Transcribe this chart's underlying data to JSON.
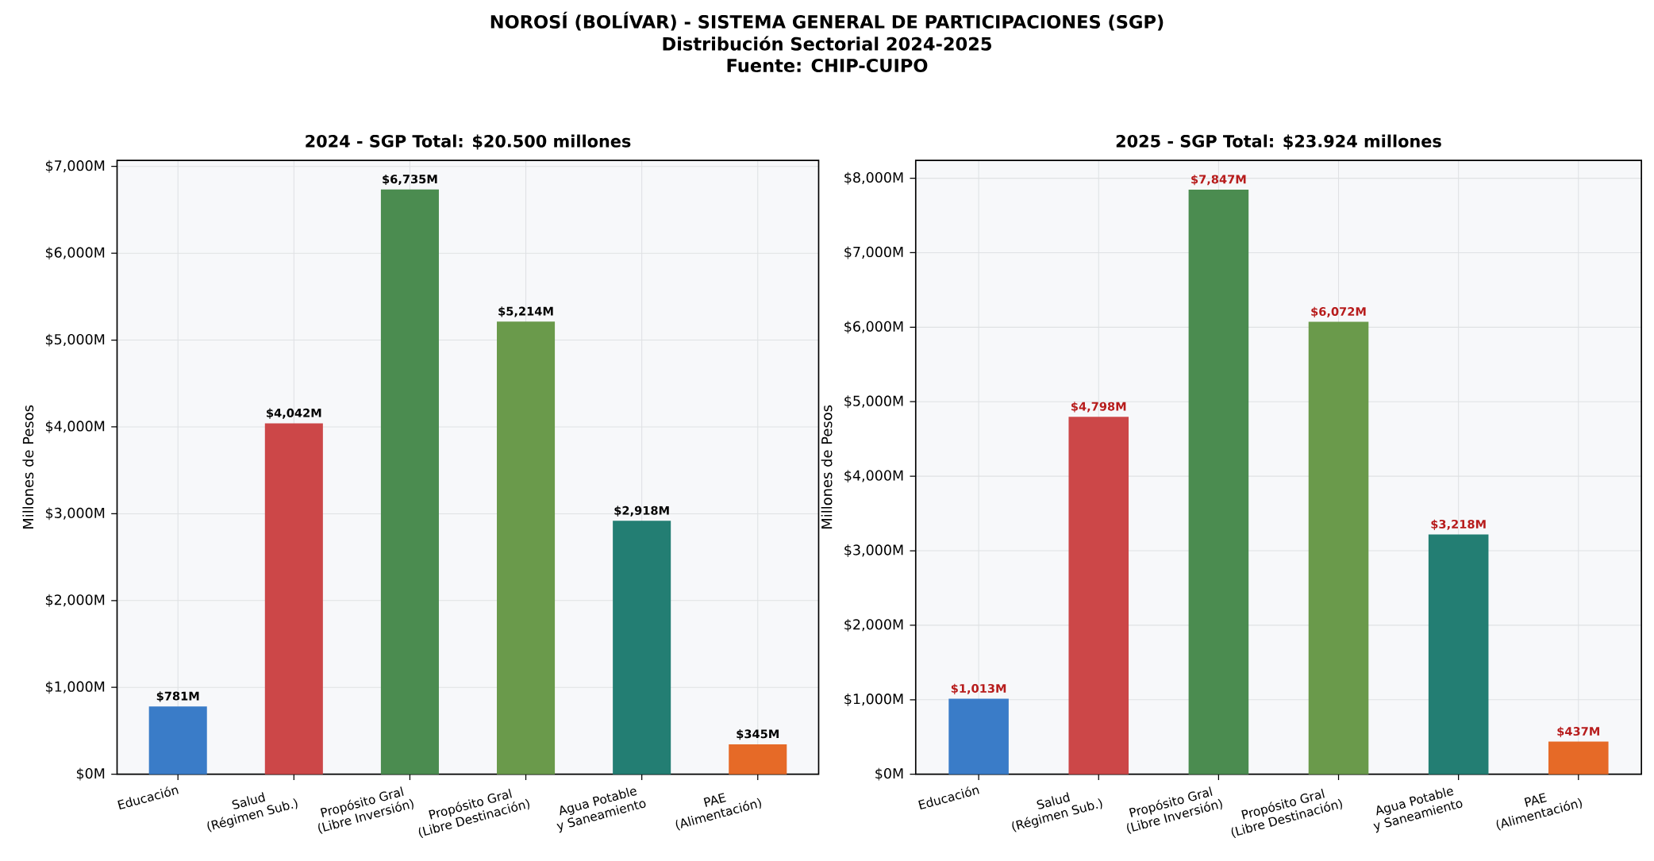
{
  "chart_data": [
    {
      "type": "bar",
      "title": "2024 - SGP Total: $20.500 millones",
      "ylabel": "Millones de Pesos",
      "annotations": [
        "NOROSÍ (BOLÍVAR) - SISTEMA GENERAL DE PARTICIPACIONES (SGP)",
        "Distribución Sectorial 2024-2025",
        "Fuente: CHIP-CUIPO"
      ],
      "categories": [
        "Educación",
        "Salud\n(Régimen Sub.)",
        "Propósito Gral\n(Libre Inversión)",
        "Propósito Gral\n(Libre Destinación)",
        "Agua Potable\ny Saneamiento",
        "PAE\n(Alimentación)"
      ],
      "values": [
        781,
        4042,
        6735,
        5214,
        2918,
        345
      ],
      "colors": [
        "#3a7cc8",
        "#cc4748",
        "#4b8c50",
        "#6a9a4b",
        "#237e73",
        "#e66a27"
      ],
      "value_labels": [
        "$781M",
        "$4,042M",
        "$6,735M",
        "$5,214M",
        "$2,918M",
        "$345M"
      ],
      "ylim": [
        0,
        7070
      ],
      "yticks": [
        {
          "value": 0,
          "label": "$0M"
        },
        {
          "value": 1000,
          "label": "$1,000M"
        },
        {
          "value": 2000,
          "label": "$2,000M"
        },
        {
          "value": 3000,
          "label": "$3,000M"
        },
        {
          "value": 4000,
          "label": "$4,000M"
        },
        {
          "value": 5000,
          "label": "$5,000M"
        },
        {
          "value": 6000,
          "label": "$6,000M"
        },
        {
          "value": 7000,
          "label": "$7,000M"
        }
      ],
      "grid": true
    },
    {
      "type": "bar",
      "title": "2025 - SGP Total: $23.924 millones",
      "ylabel": "Millones de Pesos",
      "categories": [
        "Educación",
        "Salud\n(Régimen Sub.)",
        "Propósito Gral\n(Libre Inversión)",
        "Propósito Gral\n(Libre Destinación)",
        "Agua Potable\ny Saneamiento",
        "PAE\n(Alimentación)"
      ],
      "values": [
        1013,
        4798,
        7847,
        6072,
        3218,
        437
      ],
      "colors": [
        "#3a7cc8",
        "#cc4748",
        "#4b8c50",
        "#6a9a4b",
        "#237e73",
        "#e66a27"
      ],
      "value_labels": [
        "$1,013M",
        "$4,798M",
        "$7,847M",
        "$6,072M",
        "$3,218M",
        "$437M"
      ],
      "ylim": [
        0,
        8240
      ],
      "yticks": [
        {
          "value": 0,
          "label": "$0M"
        },
        {
          "value": 1000,
          "label": "$1,000M"
        },
        {
          "value": 2000,
          "label": "$2,000M"
        },
        {
          "value": 3000,
          "label": "$3,000M"
        },
        {
          "value": 4000,
          "label": "$4,000M"
        },
        {
          "value": 5000,
          "label": "$5,000M"
        },
        {
          "value": 6000,
          "label": "$6,000M"
        },
        {
          "value": 7000,
          "label": "$7,000M"
        },
        {
          "value": 8000,
          "label": "$8,000M"
        }
      ],
      "grid": true
    }
  ]
}
